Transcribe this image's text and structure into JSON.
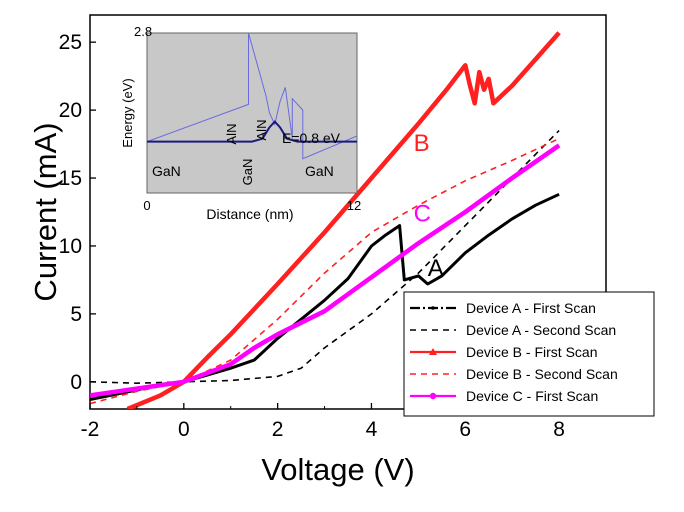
{
  "chart_data": {
    "type": "line",
    "xlabel": "Voltage (V)",
    "ylabel": "Current (mA)",
    "xlim": [
      -2,
      9
    ],
    "ylim": [
      -2,
      27
    ],
    "xticks": [
      "-2",
      "0",
      "2",
      "4",
      "6",
      "8"
    ],
    "yticks": [
      "0",
      "5",
      "10",
      "15",
      "20",
      "25"
    ],
    "legend_placement": "bottom-right",
    "series": [
      {
        "name": "Device A - First Scan",
        "color": "#000000",
        "style": "dash-dot",
        "x": [
          -2,
          -1,
          -0.5,
          0,
          0.5,
          1,
          1.5,
          2,
          2.5,
          3,
          3.5,
          4,
          4.3,
          4.6,
          4.7,
          5.0,
          5.2,
          5.5,
          6.0,
          6.5,
          7.0,
          7.5,
          8.0
        ],
        "y": [
          -1.3,
          -0.6,
          -0.2,
          0,
          0.5,
          1.0,
          1.6,
          3.2,
          4.6,
          6.0,
          7.6,
          10.0,
          10.8,
          11.5,
          7.5,
          7.8,
          7.2,
          7.8,
          9.5,
          10.8,
          12.0,
          13.0,
          13.8
        ]
      },
      {
        "name": "Device A - Second Scan",
        "color": "#000000",
        "style": "dash",
        "x": [
          -2,
          -1,
          0,
          1,
          2,
          2.5,
          3,
          4,
          5,
          6,
          7,
          8
        ],
        "y": [
          0,
          -0.1,
          0,
          0.1,
          0.4,
          1.0,
          2.5,
          5.0,
          8.0,
          11.5,
          15.0,
          18.5
        ]
      },
      {
        "name": "Device B - First Scan",
        "color": "#ff2020",
        "style": "solid-triangle",
        "x": [
          -1.2,
          -0.5,
          0,
          0.5,
          1,
          2,
          3,
          4,
          5,
          5.6,
          6.0,
          6.1,
          6.2,
          6.3,
          6.4,
          6.5,
          6.6,
          7.0,
          8.0
        ],
        "y": [
          -2.0,
          -1.0,
          0,
          1.8,
          3.5,
          7.2,
          11.0,
          15.0,
          19.0,
          21.5,
          23.3,
          21.8,
          20.5,
          22.8,
          21.5,
          22.3,
          20.5,
          21.8,
          25.7
        ]
      },
      {
        "name": "Device B - Second Scan",
        "color": "#ff2020",
        "style": "dash",
        "x": [
          -2,
          -1,
          0,
          1,
          2,
          3,
          4,
          5,
          6,
          7,
          8
        ],
        "y": [
          -1.6,
          -0.7,
          0,
          1.6,
          4.6,
          8.0,
          11.0,
          13.0,
          14.8,
          16.3,
          17.9
        ]
      },
      {
        "name": "Device C - First Scan",
        "color": "#ff00ff",
        "style": "solid-circle",
        "x": [
          -2,
          -1,
          0,
          1,
          1.5,
          2,
          3,
          4,
          5,
          6,
          7,
          8
        ],
        "y": [
          -1.0,
          -0.5,
          0,
          1.3,
          2.5,
          3.5,
          5.2,
          7.7,
          10.2,
          12.5,
          15.0,
          17.4
        ]
      }
    ],
    "annotations": [
      {
        "text": "A",
        "x": 5.2,
        "y": 7.8,
        "color": "#000000"
      },
      {
        "text": "B",
        "x": 4.9,
        "y": 17.0,
        "color": "#ff2020"
      },
      {
        "text": "C",
        "x": 4.9,
        "y": 11.8,
        "color": "#ff00ff"
      }
    ],
    "inset": {
      "xlabel": "Distance (nm)",
      "ylabel": "Energy (eV)",
      "x_ticks": [
        "0",
        "12"
      ],
      "y_top_label": "2.8",
      "region_labels": [
        "GaN",
        "AlN",
        "GaN",
        "AlN",
        "GaN"
      ],
      "energy_label": "E=0.8 eV",
      "band_profile": {
        "x": [
          0,
          5.8,
          5.8,
          6.8,
          7.0,
          7.3,
          7.6,
          7.9,
          8.3,
          8.3,
          8.9,
          8.9,
          12
        ],
        "y": [
          0.9,
          1.55,
          2.8,
          1.7,
          1.4,
          1.2,
          1.6,
          1.85,
          0.95,
          1.65,
          1.45,
          0.6,
          1.0
        ]
      },
      "wavefunction": {
        "x": [
          0,
          6.0,
          6.6,
          7.0,
          7.3,
          7.6,
          8.0,
          8.6,
          12
        ],
        "y": [
          0.9,
          0.9,
          0.95,
          1.15,
          1.25,
          1.15,
          0.95,
          0.9,
          0.9
        ]
      },
      "xlim": [
        0,
        12
      ],
      "ylim": [
        0,
        2.8
      ]
    }
  }
}
